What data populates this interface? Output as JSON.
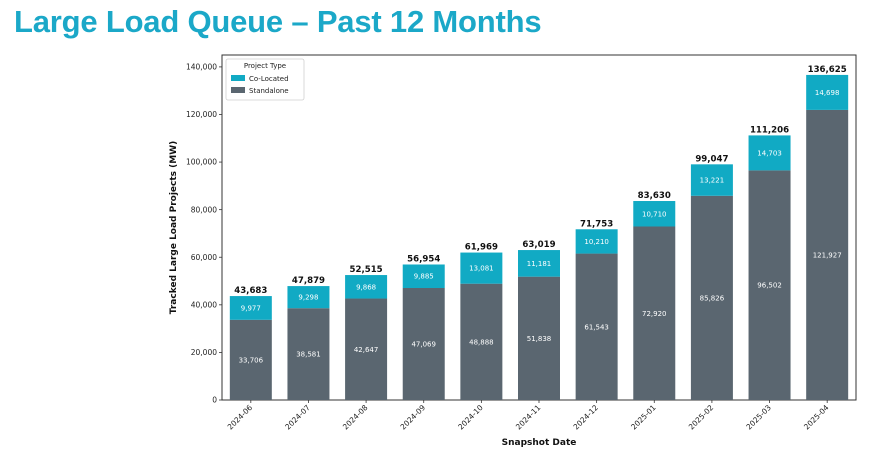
{
  "page": {
    "title": "Large Load Queue – Past 12 Months"
  },
  "colors": {
    "title": "#1ba8c8",
    "co_located": "#11aac4",
    "standalone": "#5a6670"
  },
  "chart_data": {
    "type": "bar",
    "stacked": true,
    "categories": [
      "2024-06",
      "2024-07",
      "2024-08",
      "2024-09",
      "2024-10",
      "2024-11",
      "2024-12",
      "2025-01",
      "2025-02",
      "2025-03",
      "2025-04"
    ],
    "series": [
      {
        "name": "Standalone",
        "values": [
          33706,
          38581,
          42647,
          47069,
          48888,
          51838,
          61543,
          72920,
          85826,
          96502,
          121927
        ]
      },
      {
        "name": "Co-Located",
        "values": [
          9977,
          9298,
          9868,
          9885,
          13081,
          11181,
          10210,
          10710,
          13221,
          14703,
          14698
        ]
      }
    ],
    "totals": [
      43683,
      47879,
      52515,
      56954,
      61969,
      63019,
      71753,
      83630,
      99047,
      111206,
      136625
    ],
    "segment_labels": {
      "Standalone": [
        "33,706",
        "38,581",
        "42,647",
        "47,069",
        "48,888",
        "51,838",
        "61,543",
        "72,920",
        "85,826",
        "96,502",
        "121,927"
      ],
      "Co-Located": [
        "9,977",
        "9,298",
        "9,868",
        "9,885",
        "13,081",
        "11,181",
        "10,210",
        "10,710",
        "13,221",
        "14,703",
        "14,698"
      ]
    },
    "total_labels": [
      "43,683",
      "47,879",
      "52,515",
      "56,954",
      "61,969",
      "63,019",
      "71,753",
      "83,630",
      "99,047",
      "111,206",
      "136,625"
    ],
    "xlabel": "Snapshot Date",
    "ylabel": "Tracked Large Load Projects (MW)",
    "ylim": [
      0,
      145000
    ],
    "yticks": [
      0,
      20000,
      40000,
      60000,
      80000,
      100000,
      120000,
      140000
    ],
    "ytick_labels": [
      "0",
      "20,000",
      "40,000",
      "60,000",
      "80,000",
      "100,000",
      "120,000",
      "140,000"
    ],
    "legend": {
      "title": "Project Type",
      "position": "top-left",
      "entries": [
        "Co-Located",
        "Standalone"
      ]
    },
    "grid": false
  }
}
